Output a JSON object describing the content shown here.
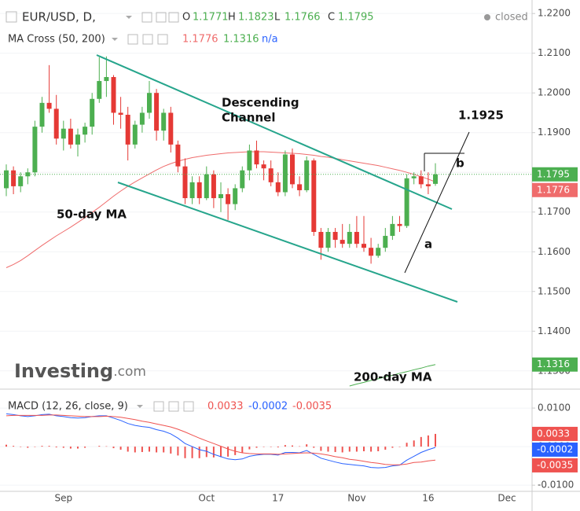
{
  "chart_data": [
    {
      "type": "candlestick",
      "title": "EUR/USD, D,",
      "status": "closed",
      "ohlc_labels": [
        "O",
        "H",
        "L",
        "C"
      ],
      "study": {
        "name": "MA Cross (50, 200)",
        "extra": "n/a"
      },
      "watermark": [
        "Investing",
        ".com"
      ],
      "annotations": {
        "channel": [
          "Descending",
          "Channel"
        ],
        "ma50": "50-day MA",
        "ma200": "200-day MA",
        "target": 1.1925,
        "a": "a",
        "b": "b"
      },
      "up_color": "#4caf50",
      "down_color": "#e53935",
      "categories": [
        null,
        null,
        null,
        null,
        null,
        null,
        null,
        null,
        "Sep",
        null,
        null,
        null,
        null,
        null,
        null,
        null,
        null,
        null,
        null,
        null,
        null,
        null,
        null,
        null,
        null,
        null,
        null,
        null,
        "Oct",
        null,
        null,
        null,
        null,
        null,
        null,
        null,
        null,
        null,
        "17",
        null,
        null,
        null,
        null,
        null,
        null,
        null,
        null,
        null,
        null,
        "Nov",
        null,
        null,
        null,
        null,
        null,
        null,
        null,
        null,
        null,
        "16",
        null,
        null,
        null,
        null,
        null,
        null,
        null,
        null,
        null,
        null,
        "Dec"
      ],
      "open": [
        1.176,
        1.1805,
        1.1765,
        1.179,
        1.18,
        1.1915,
        1.1975,
        1.196,
        1.1885,
        1.191,
        1.187,
        1.1895,
        1.1915,
        1.1985,
        1.203,
        1.204,
        1.195,
        1.1945,
        1.187,
        1.192,
        1.195,
        1.2,
        1.1905,
        1.195,
        1.187,
        1.1815,
        1.1735,
        1.1775,
        1.1735,
        1.1795,
        1.1735,
        1.1745,
        1.172,
        1.176,
        1.1805,
        1.1855,
        1.182,
        1.181,
        1.1775,
        1.175,
        1.1845,
        1.177,
        1.1755,
        1.183,
        1.165,
        1.161,
        1.165,
        1.163,
        1.162,
        1.165,
        1.162,
        1.161,
        1.159,
        1.161,
        1.164,
        1.167,
        1.1665,
        1.1785,
        1.179,
        1.177,
        1.1771,
        null,
        null,
        null,
        null,
        null,
        null,
        null,
        null,
        null,
        null
      ],
      "high": [
        1.182,
        1.1815,
        1.18,
        1.181,
        1.193,
        1.199,
        1.207,
        1.1995,
        1.193,
        1.1935,
        1.191,
        1.1925,
        1.2,
        1.209,
        1.2092,
        1.2045,
        1.199,
        1.1965,
        1.193,
        1.1965,
        1.203,
        1.201,
        1.196,
        1.1965,
        1.188,
        1.1835,
        1.179,
        1.179,
        1.1815,
        1.1805,
        1.1775,
        1.176,
        1.177,
        1.1815,
        1.187,
        1.188,
        1.183,
        1.183,
        1.18,
        1.1855,
        1.186,
        1.179,
        1.184,
        1.1835,
        1.166,
        1.166,
        1.166,
        1.167,
        1.167,
        1.169,
        1.169,
        1.1635,
        1.162,
        1.166,
        1.169,
        1.169,
        1.1795,
        1.18,
        1.1805,
        1.18,
        1.1823,
        null,
        null,
        null,
        null,
        null,
        null,
        null,
        null,
        null,
        null
      ],
      "low": [
        1.174,
        1.1745,
        1.175,
        1.177,
        1.179,
        1.19,
        1.195,
        1.187,
        1.1855,
        1.186,
        1.184,
        1.1875,
        1.1895,
        1.1975,
        1.199,
        1.192,
        1.191,
        1.183,
        1.186,
        1.19,
        1.1935,
        1.188,
        1.188,
        1.185,
        1.18,
        1.172,
        1.172,
        1.172,
        1.173,
        1.171,
        1.17,
        1.168,
        1.1705,
        1.175,
        1.178,
        1.181,
        1.178,
        1.1765,
        1.174,
        1.174,
        1.176,
        1.174,
        1.175,
        1.164,
        1.158,
        1.16,
        1.161,
        1.161,
        1.161,
        1.161,
        1.16,
        1.157,
        1.1585,
        1.16,
        1.163,
        1.165,
        1.166,
        1.177,
        1.176,
        1.1745,
        1.1766,
        null,
        null,
        null,
        null,
        null,
        null,
        null,
        null,
        null,
        null
      ],
      "close": [
        1.1805,
        1.1765,
        1.179,
        1.18,
        1.1915,
        1.1975,
        1.196,
        1.1885,
        1.191,
        1.187,
        1.1895,
        1.1915,
        1.1985,
        1.203,
        1.204,
        1.195,
        1.1945,
        1.187,
        1.192,
        1.195,
        1.2,
        1.1905,
        1.195,
        1.187,
        1.1815,
        1.1735,
        1.1775,
        1.1735,
        1.1795,
        1.1735,
        1.1745,
        1.172,
        1.176,
        1.1805,
        1.1855,
        1.182,
        1.181,
        1.1775,
        1.175,
        1.1845,
        1.177,
        1.1755,
        1.183,
        1.165,
        1.161,
        1.165,
        1.163,
        1.162,
        1.165,
        1.162,
        1.161,
        1.159,
        1.161,
        1.164,
        1.167,
        1.1665,
        1.1785,
        1.179,
        1.177,
        1.1765,
        1.1795,
        null,
        null,
        null,
        null,
        null,
        null,
        null,
        null,
        null,
        null
      ],
      "series": [
        {
          "name": "50-day MA",
          "color": "#ef6c6c",
          "values": [
            1.156,
            1.1568,
            1.1578,
            1.159,
            1.1603,
            1.1616,
            1.1628,
            1.164,
            1.1651,
            1.1662,
            1.1674,
            1.1686,
            1.1699,
            1.1712,
            1.1726,
            1.174,
            1.1753,
            1.1765,
            1.1776,
            1.1786,
            1.1796,
            1.1806,
            1.1815,
            1.1822,
            1.1828,
            1.1833,
            1.1837,
            1.184,
            1.1843,
            1.1845,
            1.1847,
            1.1849,
            1.185,
            1.1851,
            1.1852,
            1.1852,
            1.1852,
            1.1851,
            1.185,
            1.1849,
            1.1848,
            1.1847,
            1.1845,
            1.1843,
            1.184,
            1.1838,
            1.1835,
            1.1832,
            1.1829,
            1.1826,
            1.1823,
            1.182,
            1.1817,
            1.1813,
            1.1809,
            1.1805,
            1.18,
            1.1795,
            1.1789,
            1.1783,
            1.1776,
            null,
            null,
            null,
            null,
            null,
            null,
            null,
            null,
            null,
            null
          ]
        },
        {
          "name": "200-day MA",
          "color": "#4caf50",
          "values": [
            null,
            null,
            null,
            null,
            null,
            null,
            null,
            null,
            null,
            null,
            null,
            null,
            null,
            null,
            null,
            null,
            null,
            null,
            null,
            null,
            null,
            null,
            null,
            null,
            null,
            null,
            null,
            null,
            null,
            null,
            null,
            null,
            null,
            null,
            null,
            null,
            null,
            null,
            null,
            null,
            null,
            null,
            null,
            null,
            null,
            null,
            null,
            null,
            1.1262,
            1.1267,
            1.1271,
            1.1276,
            1.128,
            1.1285,
            1.1289,
            1.1294,
            1.1298,
            1.1303,
            1.1307,
            1.1312,
            1.1316,
            null,
            null,
            null,
            null,
            null,
            null,
            null,
            null,
            null,
            null
          ]
        }
      ],
      "ylim": [
        1.126,
        1.2234
      ],
      "yticks": [
        {
          "value": 1.13,
          "label": "1.1300"
        },
        {
          "value": 1.14,
          "label": "1.1400"
        },
        {
          "value": 1.15,
          "label": "1.1500"
        },
        {
          "value": 1.16,
          "label": "1.1600"
        },
        {
          "value": 1.17,
          "label": "1.1700"
        },
        {
          "value": 1.18,
          "label": "1.1800"
        },
        {
          "value": 1.19,
          "label": "1.1900"
        },
        {
          "value": 1.2,
          "label": "1.2000"
        },
        {
          "value": 1.21,
          "label": "1.2100"
        },
        {
          "value": 1.22,
          "label": "1.2200"
        }
      ],
      "grid": true
    },
    {
      "type": "macd",
      "title": "MACD (12, 26, close, 9)",
      "series": [
        {
          "kind": "histogram",
          "color": "#ef5350",
          "values": [
            0.0005,
            0.0002,
            -0.0001,
            -0.0003,
            -0.0001,
            0.0002,
            0.0002,
            -0.0002,
            -0.0003,
            -0.0005,
            -0.0005,
            -0.0003,
            0.0,
            0.0002,
            0.0001,
            -0.0004,
            -0.0008,
            -0.0013,
            -0.0015,
            -0.0014,
            -0.0013,
            -0.0015,
            -0.0015,
            -0.0018,
            -0.0023,
            -0.003,
            -0.003,
            -0.003,
            -0.0027,
            -0.0028,
            -0.0027,
            -0.0026,
            -0.0022,
            -0.0016,
            -0.0007,
            -0.0003,
            -0.0001,
            -0.0001,
            -0.0002,
            0.0004,
            0.0003,
            0.0001,
            0.0006,
            -0.0003,
            -0.0011,
            -0.0013,
            -0.0014,
            -0.0015,
            -0.0013,
            -0.0013,
            -0.0012,
            -0.0013,
            -0.0012,
            -0.0008,
            -0.0003,
            -0.0001,
            0.001,
            0.0016,
            0.0025,
            0.0029,
            0.0033,
            null,
            null,
            null,
            null,
            null,
            null,
            null,
            null,
            null,
            null
          ]
        },
        {
          "kind": "line",
          "color": "#2962ff",
          "values": [
            0.0085,
            0.0083,
            0.008,
            0.0078,
            0.008,
            0.0083,
            0.0084,
            0.008,
            0.0078,
            0.0075,
            0.0074,
            0.0075,
            0.0078,
            0.008,
            0.008,
            0.0074,
            0.0068,
            0.006,
            0.0055,
            0.0052,
            0.005,
            0.0044,
            0.004,
            0.0033,
            0.0022,
            0.0008,
            0.0,
            -0.0008,
            -0.0012,
            -0.002,
            -0.0026,
            -0.0032,
            -0.0034,
            -0.0032,
            -0.0025,
            -0.0022,
            -0.002,
            -0.002,
            -0.0022,
            -0.0015,
            -0.0015,
            -0.0016,
            -0.001,
            -0.002,
            -0.003,
            -0.0035,
            -0.004,
            -0.0044,
            -0.0046,
            -0.0048,
            -0.005,
            -0.0054,
            -0.0055,
            -0.0054,
            -0.005,
            -0.0048,
            -0.0035,
            -0.0025,
            -0.0015,
            -0.0008,
            -0.0002,
            null,
            null,
            null,
            null,
            null,
            null,
            null,
            null,
            null,
            null
          ]
        },
        {
          "kind": "line",
          "color": "#ef5350",
          "values": [
            0.008,
            0.0081,
            0.0081,
            0.0081,
            0.0081,
            0.0081,
            0.0082,
            0.0082,
            0.0081,
            0.008,
            0.0079,
            0.0078,
            0.0078,
            0.0078,
            0.0079,
            0.0078,
            0.0076,
            0.0073,
            0.007,
            0.0066,
            0.0063,
            0.0059,
            0.0055,
            0.0051,
            0.0045,
            0.0038,
            0.003,
            0.0022,
            0.0015,
            0.0008,
            0.0001,
            -0.0006,
            -0.0012,
            -0.0016,
            -0.0018,
            -0.0019,
            -0.0019,
            -0.0019,
            -0.002,
            -0.0019,
            -0.0018,
            -0.0017,
            -0.0016,
            -0.0017,
            -0.0019,
            -0.0022,
            -0.0026,
            -0.0029,
            -0.0033,
            -0.0035,
            -0.0038,
            -0.0041,
            -0.0043,
            -0.0046,
            -0.0047,
            -0.0047,
            -0.0045,
            -0.0041,
            -0.004,
            -0.0037,
            -0.0035,
            null,
            null,
            null,
            null,
            null,
            null,
            null,
            null,
            null,
            null
          ]
        }
      ],
      "ylim": [
        -0.0116,
        0.0145
      ],
      "yticks": [
        {
          "value": -0.01,
          "label": "-0.0100"
        },
        {
          "value": 0,
          "label": "0.0000"
        },
        {
          "value": 0.01,
          "label": "0.0100"
        }
      ]
    }
  ]
}
